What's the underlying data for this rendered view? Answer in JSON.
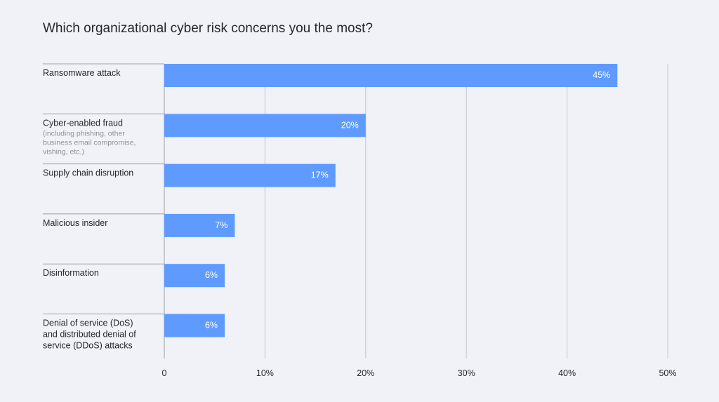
{
  "chart_data": {
    "type": "bar",
    "orientation": "horizontal",
    "title": "Which organizational cyber risk concerns you the most?",
    "categories": [
      {
        "lines": [
          "Ransomware attack"
        ],
        "note_lines": []
      },
      {
        "lines": [
          "Cyber-enabled fraud"
        ],
        "note_lines": [
          "(including phishing, other",
          "business email compromise,",
          "vishing, etc.)"
        ]
      },
      {
        "lines": [
          "Supply chain disruption"
        ],
        "note_lines": []
      },
      {
        "lines": [
          "Malicious insider"
        ],
        "note_lines": []
      },
      {
        "lines": [
          "Disinformation"
        ],
        "note_lines": []
      },
      {
        "lines": [
          "Denial of service (DoS)",
          "and distributed denial of",
          "service (DDoS) attacks"
        ],
        "note_lines": []
      }
    ],
    "values": [
      45,
      20,
      17,
      7,
      6,
      6
    ],
    "data_labels": [
      "45%",
      "20%",
      "17%",
      "7%",
      "6%",
      "6%"
    ],
    "xlim": [
      0,
      50
    ],
    "x_ticks": [
      0,
      10,
      20,
      30,
      40,
      50
    ],
    "x_tick_labels": [
      "0",
      "10%",
      "20%",
      "30%",
      "40%",
      "50%"
    ],
    "grid": "vertical",
    "bar_color": "#5f9bff",
    "grid_color": "#c2c6cd",
    "axis_color": "#9aa0a8"
  }
}
